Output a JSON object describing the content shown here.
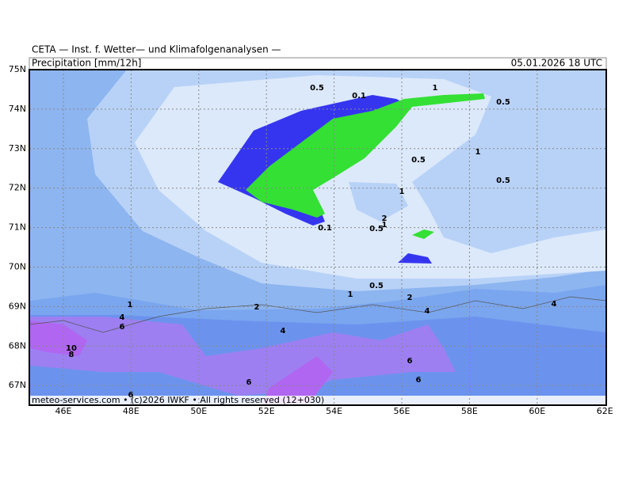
{
  "header": {
    "title": "CETA — Inst. f. Wetter— und Klimafolgenanalysen —",
    "subtitle": "Precipitation [mm/12h]",
    "valid_time": "05.01.2026 18 UTC"
  },
  "axes": {
    "lat_labels": [
      "75N",
      "74N",
      "73N",
      "72N",
      "71N",
      "70N",
      "69N",
      "68N",
      "67N"
    ],
    "lon_labels": [
      "46E",
      "48E",
      "50E",
      "52E",
      "54E",
      "56E",
      "58E",
      "60E",
      "62E"
    ]
  },
  "contour_labels": [
    "0.5",
    "0.1",
    "1",
    "0.5",
    "1",
    "0.5",
    "0.5",
    "1",
    "2",
    "1",
    "0.1",
    "0.5",
    "0.5",
    "1",
    "2",
    "1",
    "4",
    "6",
    "2",
    "4",
    "4",
    "4",
    "10",
    "8",
    "6",
    "6",
    "6",
    "6"
  ],
  "footer": "meteo-services.com • (c)2026 IWKF • All rights reserved (12+030)"
}
